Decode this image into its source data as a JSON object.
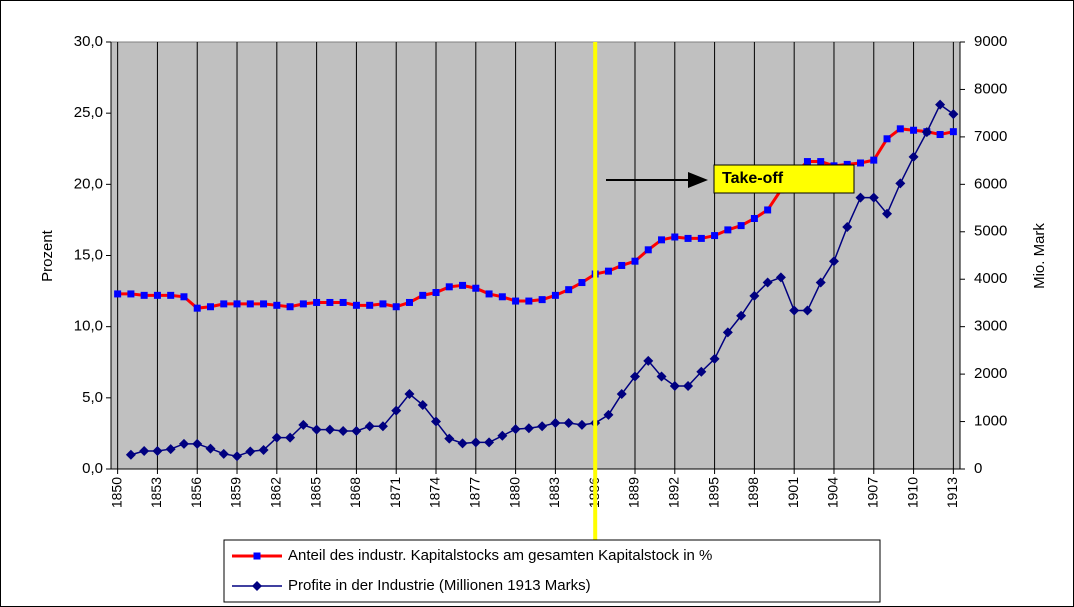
{
  "chart_data": {
    "type": "line",
    "y_label": "Prozent",
    "y2_label": "Mio. Mark",
    "x": [
      1850,
      1851,
      1852,
      1853,
      1854,
      1855,
      1856,
      1857,
      1858,
      1859,
      1860,
      1861,
      1862,
      1863,
      1864,
      1865,
      1866,
      1867,
      1868,
      1869,
      1870,
      1871,
      1872,
      1873,
      1874,
      1875,
      1876,
      1877,
      1878,
      1879,
      1880,
      1881,
      1882,
      1883,
      1884,
      1885,
      1886,
      1887,
      1888,
      1889,
      1890,
      1891,
      1892,
      1893,
      1894,
      1895,
      1896,
      1897,
      1898,
      1899,
      1900,
      1901,
      1902,
      1903,
      1904,
      1905,
      1906,
      1907,
      1908,
      1909,
      1910,
      1911,
      1912,
      1913
    ],
    "xlim": [
      1849.5,
      1913.5
    ],
    "xticks": [
      1850,
      1853,
      1856,
      1859,
      1862,
      1865,
      1868,
      1871,
      1874,
      1877,
      1880,
      1883,
      1886,
      1889,
      1892,
      1895,
      1898,
      1901,
      1904,
      1907,
      1910,
      1913
    ],
    "ylim": [
      0,
      30
    ],
    "yticks": [
      {
        "value": 0,
        "label": "0,0"
      },
      {
        "value": 5,
        "label": "5,0"
      },
      {
        "value": 10,
        "label": "10,0"
      },
      {
        "value": 15,
        "label": "15,0"
      },
      {
        "value": 20,
        "label": "20,0"
      },
      {
        "value": 25,
        "label": "25,0"
      },
      {
        "value": 30,
        "label": "30,0"
      }
    ],
    "y2lim": [
      0,
      9000
    ],
    "y2ticks": [
      0,
      1000,
      2000,
      3000,
      4000,
      5000,
      6000,
      7000,
      8000,
      9000
    ],
    "plot_background": "#c0c0c0",
    "vertical_grid": true,
    "series": [
      {
        "name": "Anteil des industr. Kapitalstocks am gesamten Kapitalstock in %",
        "color": "#ff0000",
        "marker": "square",
        "marker_color": "#0000ff",
        "values": [
          12.3,
          12.3,
          12.2,
          12.2,
          12.2,
          12.1,
          11.3,
          11.4,
          11.6,
          11.6,
          11.6,
          11.6,
          11.5,
          11.4,
          11.6,
          11.7,
          11.7,
          11.7,
          11.5,
          11.5,
          11.6,
          11.4,
          11.7,
          12.2,
          12.4,
          12.8,
          12.9,
          12.7,
          12.3,
          12.1,
          11.8,
          11.8,
          11.9,
          12.2,
          12.6,
          13.1,
          13.7,
          13.9,
          14.3,
          14.6,
          15.4,
          16.1,
          16.3,
          16.2,
          16.2,
          16.4,
          16.8,
          17.1,
          17.6,
          18.2,
          19.6,
          20.7,
          21.6,
          21.6,
          21.3,
          21.4,
          21.5,
          21.7,
          23.2,
          23.9,
          23.8,
          23.7,
          23.5,
          23.7
        ]
      },
      {
        "name": "Profite in der Industrie (Millionen 1913 Marks)",
        "color": "#000080",
        "marker": "diamond",
        "marker_color": "#000080",
        "axis": "y2",
        "values": [
          null,
          300,
          380,
          380,
          420,
          530,
          530,
          430,
          320,
          270,
          370,
          400,
          660,
          660,
          930,
          830,
          830,
          800,
          800,
          900,
          900,
          1230,
          1580,
          1350,
          1000,
          640,
          540,
          560,
          560,
          700,
          840,
          860,
          900,
          970,
          970,
          930,
          970,
          1140,
          1580,
          1950,
          2280,
          1950,
          1750,
          1750,
          2050,
          2320,
          2880,
          3230,
          3650,
          3930,
          4040,
          3340,
          3340,
          3930,
          4380,
          5100,
          5720,
          5720,
          5380,
          6020,
          6580,
          7100,
          7680,
          7480
        ]
      }
    ],
    "vline": {
      "x": 1886,
      "color": "#ffff00"
    },
    "annotation": {
      "text": "Take-off",
      "color": "#ffff00"
    }
  }
}
